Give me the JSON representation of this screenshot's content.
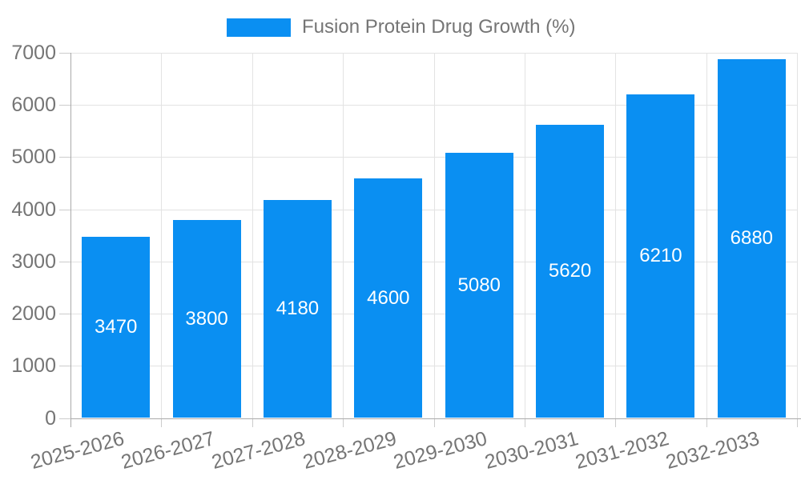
{
  "legend": {
    "label": "Fusion Protein Drug Growth (%)"
  },
  "chart_data": {
    "type": "bar",
    "title": "Fusion Protein Drug Growth (%)",
    "categories": [
      "2025-2026",
      "2026-2027",
      "2027-2028",
      "2028-2029",
      "2029-2030",
      "2030-2031",
      "2031-2032",
      "2032-2033"
    ],
    "values": [
      3470,
      3800,
      4180,
      4600,
      5080,
      5620,
      6210,
      6880
    ],
    "xlabel": "",
    "ylabel": "",
    "ylim": [
      0,
      7000
    ],
    "ytick_step": 1000,
    "yticks": [
      0,
      1000,
      2000,
      3000,
      4000,
      5000,
      6000,
      7000
    ],
    "grid": true,
    "legend_position": "top-center",
    "value_labels": "inside-center",
    "colors": {
      "bar": "#0A8FF2",
      "axis_label": "#757575",
      "title": "#757575",
      "grid": "#e3e3e3",
      "axis_line": "#aaaaaa",
      "tick": "#cccccc",
      "value_label": "#ffffff"
    }
  }
}
